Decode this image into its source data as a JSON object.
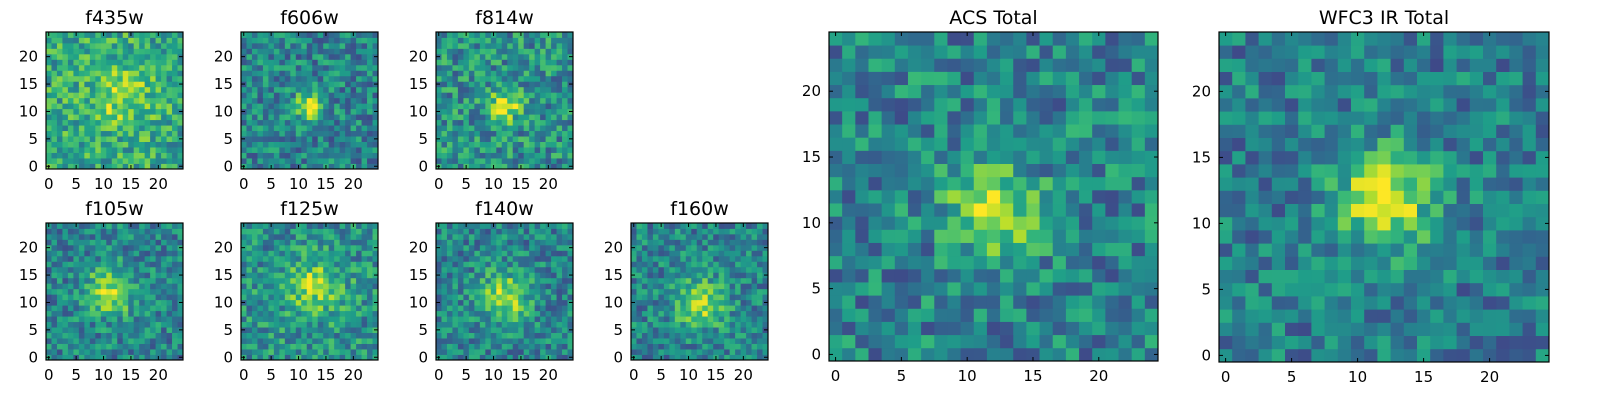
{
  "chart_data": {
    "type": "heatmap",
    "colormap": "viridis",
    "grid": false,
    "panels": [
      {
        "id": "f435w",
        "title": "f435w",
        "xticks": [
          0,
          5,
          10,
          15,
          20
        ],
        "yticks": [
          0,
          5,
          10,
          15,
          20
        ],
        "xlim": [
          0,
          25
        ],
        "ylim": [
          0,
          25
        ],
        "grid_size": 25,
        "peak": [
          13,
          13
        ],
        "peak_width": 4.0,
        "peak_amp": 0.25,
        "noise": 0.3,
        "baseline": 0.6,
        "seed": 11
      },
      {
        "id": "f606w",
        "title": "f606w",
        "xticks": [
          0,
          5,
          10,
          15,
          20
        ],
        "yticks": [
          0,
          5,
          10,
          15,
          20
        ],
        "xlim": [
          0,
          25
        ],
        "ylim": [
          0,
          25
        ],
        "grid_size": 25,
        "peak": [
          12,
          11
        ],
        "peak_width": 1.8,
        "peak_amp": 0.55,
        "noise": 0.3,
        "baseline": 0.45,
        "seed": 22
      },
      {
        "id": "f814w",
        "title": "f814w",
        "xticks": [
          0,
          5,
          10,
          15,
          20
        ],
        "yticks": [
          0,
          5,
          10,
          15,
          20
        ],
        "xlim": [
          0,
          25
        ],
        "ylim": [
          0,
          25
        ],
        "grid_size": 25,
        "peak": [
          12,
          11
        ],
        "peak_width": 2.0,
        "peak_amp": 0.45,
        "noise": 0.32,
        "baseline": 0.5,
        "seed": 33
      },
      {
        "id": "f105w",
        "title": "f105w",
        "xticks": [
          0,
          5,
          10,
          15,
          20
        ],
        "yticks": [
          0,
          5,
          10,
          15,
          20
        ],
        "xlim": [
          0,
          25
        ],
        "ylim": [
          0,
          25
        ],
        "grid_size": 25,
        "peak": [
          11,
          12
        ],
        "peak_width": 3.0,
        "peak_amp": 0.45,
        "noise": 0.28,
        "baseline": 0.45,
        "seed": 44
      },
      {
        "id": "f125w",
        "title": "f125w",
        "xticks": [
          0,
          5,
          10,
          15,
          20
        ],
        "yticks": [
          0,
          5,
          10,
          15,
          20
        ],
        "xlim": [
          0,
          25
        ],
        "ylim": [
          0,
          25
        ],
        "grid_size": 25,
        "peak": [
          13,
          13
        ],
        "peak_width": 3.5,
        "peak_amp": 0.35,
        "noise": 0.3,
        "baseline": 0.5,
        "seed": 55
      },
      {
        "id": "f140w",
        "title": "f140w",
        "xticks": [
          0,
          5,
          10,
          15,
          20
        ],
        "yticks": [
          0,
          5,
          10,
          15,
          20
        ],
        "xlim": [
          0,
          25
        ],
        "ylim": [
          0,
          25
        ],
        "grid_size": 25,
        "peak": [
          12,
          11
        ],
        "peak_width": 3.0,
        "peak_amp": 0.45,
        "noise": 0.28,
        "baseline": 0.45,
        "seed": 66
      },
      {
        "id": "f160w",
        "title": "f160w",
        "xticks": [
          0,
          5,
          10,
          15,
          20
        ],
        "yticks": [
          0,
          5,
          10,
          15,
          20
        ],
        "xlim": [
          0,
          25
        ],
        "ylim": [
          0,
          25
        ],
        "grid_size": 25,
        "peak": [
          12,
          10
        ],
        "peak_width": 3.0,
        "peak_amp": 0.45,
        "noise": 0.28,
        "baseline": 0.45,
        "seed": 77
      },
      {
        "id": "acs-total",
        "title": "ACS Total",
        "xticks": [
          0,
          5,
          10,
          15,
          20
        ],
        "yticks": [
          0,
          5,
          10,
          15,
          20
        ],
        "xlim": [
          0,
          25
        ],
        "ylim": [
          0,
          25
        ],
        "grid_size": 25,
        "peak": [
          12,
          11
        ],
        "peak_width": 2.3,
        "peak_amp": 0.5,
        "noise": 0.3,
        "baseline": 0.45,
        "seed": 88
      },
      {
        "id": "wfc3-ir-total",
        "title": "WFC3 IR Total",
        "xticks": [
          0,
          5,
          10,
          15,
          20
        ],
        "yticks": [
          0,
          5,
          10,
          15,
          20
        ],
        "xlim": [
          0,
          25
        ],
        "ylim": [
          0,
          25
        ],
        "grid_size": 25,
        "peak": [
          12,
          12
        ],
        "peak_width": 2.6,
        "peak_amp": 0.55,
        "noise": 0.27,
        "baseline": 0.42,
        "seed": 99
      }
    ]
  }
}
